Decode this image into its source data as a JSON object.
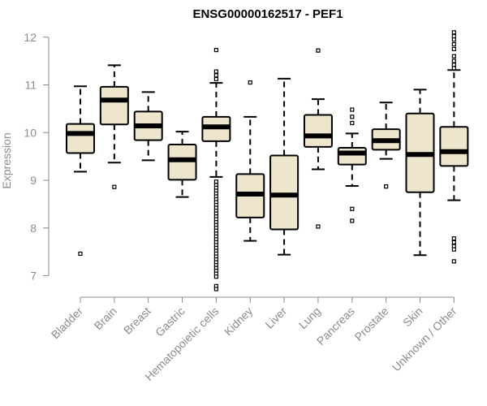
{
  "chart_data": {
    "type": "boxplot",
    "title": "ENSG00000162517 - PEF1",
    "ylabel": "Expression",
    "ylim": [
      6.6,
      12.2
    ],
    "yticks": [
      "7",
      "8",
      "9",
      "10",
      "11",
      "12"
    ],
    "colors": {
      "box_fill": "#ede6cc",
      "box_stroke": "#000000",
      "axis": "#8c8c8c"
    },
    "categories": [
      "Bladder",
      "Brain",
      "Breast",
      "Gastric",
      "Hematopoietic cells",
      "Kidney",
      "Liver",
      "Lung",
      "Pancreas",
      "Prostate",
      "Skin",
      "Unknown / Other"
    ],
    "boxes": [
      {
        "name": "Bladder",
        "whisker_low": 9.18,
        "q1": 9.57,
        "median": 9.98,
        "q3": 10.18,
        "whisker_high": 10.97,
        "outliers": [
          7.46
        ]
      },
      {
        "name": "Brain",
        "whisker_low": 9.37,
        "q1": 10.17,
        "median": 10.68,
        "q3": 10.96,
        "whisker_high": 11.41,
        "outliers": [
          8.86
        ]
      },
      {
        "name": "Breast",
        "whisker_low": 9.42,
        "q1": 9.84,
        "median": 10.14,
        "q3": 10.44,
        "whisker_high": 10.85,
        "outliers": []
      },
      {
        "name": "Gastric",
        "whisker_low": 8.65,
        "q1": 9.01,
        "median": 9.43,
        "q3": 9.75,
        "whisker_high": 10.02,
        "outliers": []
      },
      {
        "name": "Hematopoietic cells",
        "whisker_low": 9.07,
        "q1": 9.82,
        "median": 10.12,
        "q3": 10.33,
        "whisker_high": 11.04,
        "outliers": [
          11.73,
          11.28,
          11.2,
          11.12,
          8.97,
          8.9,
          8.84,
          8.78,
          8.72,
          8.66,
          8.6,
          8.54,
          8.48,
          8.42,
          8.36,
          8.3,
          8.24,
          8.18,
          8.12,
          8.06,
          8.0,
          7.94,
          7.88,
          7.82,
          7.76,
          7.7,
          7.64,
          7.58,
          7.52,
          7.46,
          7.4,
          7.34,
          7.28,
          7.22,
          7.16,
          7.1,
          7.04,
          6.98,
          6.78,
          6.72
        ]
      },
      {
        "name": "Kidney",
        "whisker_low": 7.73,
        "q1": 8.22,
        "median": 8.71,
        "q3": 9.13,
        "whisker_high": 10.33,
        "outliers": [
          11.05
        ]
      },
      {
        "name": "Liver",
        "whisker_low": 7.44,
        "q1": 7.97,
        "median": 8.69,
        "q3": 9.52,
        "whisker_high": 11.13,
        "outliers": []
      },
      {
        "name": "Lung",
        "whisker_low": 9.23,
        "q1": 9.7,
        "median": 9.93,
        "q3": 10.37,
        "whisker_high": 10.7,
        "outliers": [
          11.72,
          8.03
        ]
      },
      {
        "name": "Pancreas",
        "whisker_low": 8.88,
        "q1": 9.33,
        "median": 9.57,
        "q3": 9.68,
        "whisker_high": 9.98,
        "outliers": [
          10.48,
          10.33,
          10.2,
          8.4,
          8.15
        ]
      },
      {
        "name": "Prostate",
        "whisker_low": 9.45,
        "q1": 9.64,
        "median": 9.83,
        "q3": 10.07,
        "whisker_high": 10.63,
        "outliers": [
          8.87
        ]
      },
      {
        "name": "Skin",
        "whisker_low": 7.43,
        "q1": 8.75,
        "median": 9.54,
        "q3": 10.4,
        "whisker_high": 10.9,
        "outliers": []
      },
      {
        "name": "Unknown / Other",
        "whisker_low": 8.58,
        "q1": 9.3,
        "median": 9.6,
        "q3": 10.12,
        "whisker_high": 11.31,
        "outliers": [
          12.1,
          12.02,
          11.95,
          11.85,
          11.75,
          11.6,
          11.5,
          11.42,
          11.35,
          7.78,
          7.7,
          7.62,
          7.55,
          7.3
        ]
      }
    ]
  }
}
